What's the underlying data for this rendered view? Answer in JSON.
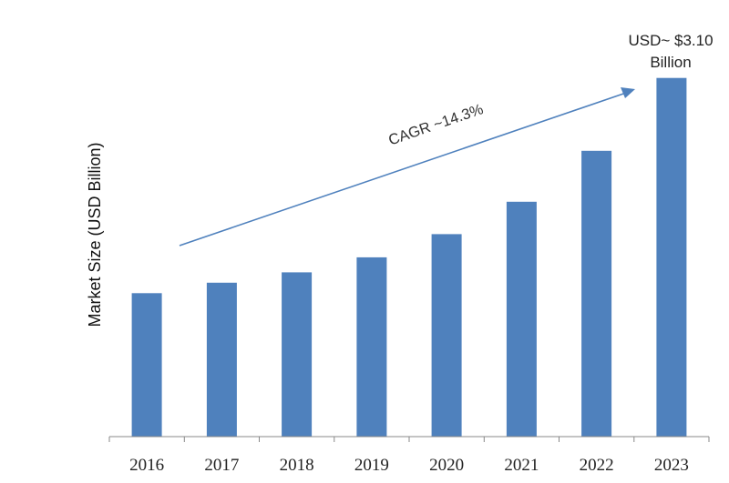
{
  "chart_data": {
    "type": "bar",
    "categories": [
      "2016",
      "2017",
      "2018",
      "2019",
      "2020",
      "2021",
      "2022",
      "2023"
    ],
    "values": [
      1.24,
      1.33,
      1.42,
      1.55,
      1.75,
      2.03,
      2.47,
      3.1
    ],
    "title": "",
    "xlabel": "",
    "ylabel": "Market Size (USD Billion)",
    "ylim": [
      0,
      3.2
    ],
    "grid": false,
    "annotations": {
      "cagr": "CAGR ~14.3%",
      "last_value_line1": "USD~ $3.10",
      "last_value_line2": "Billion"
    }
  },
  "colors": {
    "bar": "#4f81bd",
    "arrow": "#4f81bd",
    "axis": "#888888"
  }
}
